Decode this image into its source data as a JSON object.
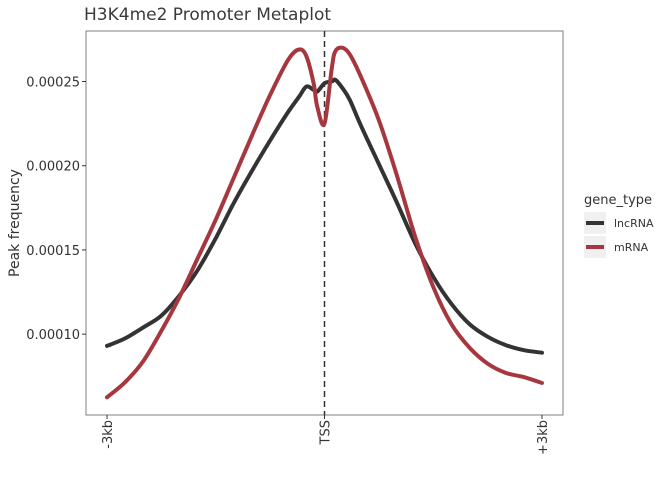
{
  "chart_data": {
    "type": "line",
    "title": "H3K4me2 Promoter Metaplot",
    "xlabel": "",
    "ylabel": "Peak frequency",
    "x_tick_labels": [
      "-3kb",
      "TSS",
      "+3kb"
    ],
    "x_ticks": [
      -3000,
      0,
      3000
    ],
    "xlim": [
      -3000,
      3000
    ],
    "y_tick_labels": [
      "0.00010",
      "0.00015",
      "0.00020",
      "0.00025"
    ],
    "y_ticks": [
      0.0001,
      0.00015,
      0.0002,
      0.00025
    ],
    "ylim": [
      5.2e-05,
      0.00028
    ],
    "vline_x": 0,
    "grid": false,
    "legend": {
      "title": "gene_type",
      "position": "right"
    },
    "x": [
      -3000,
      -2750,
      -2500,
      -2250,
      -2000,
      -1750,
      -1500,
      -1250,
      -1000,
      -750,
      -500,
      -350,
      -250,
      -150,
      -100,
      0,
      100,
      150,
      250,
      350,
      500,
      750,
      1000,
      1250,
      1500,
      1750,
      2000,
      2250,
      2500,
      2750,
      3000
    ],
    "series": [
      {
        "name": "lncRNA",
        "color": "#333333",
        "values": [
          9.3e-05,
          9.75e-05,
          0.000104,
          0.000111,
          0.000123,
          0.000138,
          0.000157,
          0.000178,
          0.000197,
          0.000215,
          0.000232,
          0.000241,
          0.000247,
          0.000245,
          0.000244,
          0.000249,
          0.00025,
          0.000251,
          0.000246,
          0.000239,
          0.000224,
          0.000201,
          0.000178,
          0.000154,
          0.000134,
          0.000118,
          0.000106,
          9.85e-05,
          9.35e-05,
          9.05e-05,
          8.9e-05
        ]
      },
      {
        "name": "mRNA",
        "color": "#a6373f",
        "values": [
          6.25e-05,
          7.15e-05,
          8.4e-05,
          0.000102,
          0.000122,
          0.000145,
          0.000168,
          0.000193,
          0.000218,
          0.000242,
          0.000263,
          0.000269,
          0.000265,
          0.000249,
          0.000235,
          0.000225,
          0.000258,
          0.000268,
          0.00027,
          0.000266,
          0.000253,
          0.000227,
          0.000194,
          0.000158,
          0.000128,
          0.000106,
          9.2e-05,
          8.25e-05,
          7.7e-05,
          7.45e-05,
          7.1e-05
        ]
      }
    ]
  }
}
